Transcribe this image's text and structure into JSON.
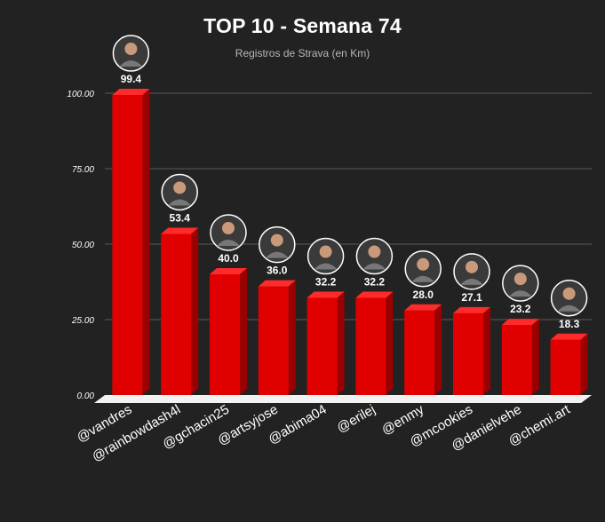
{
  "header": {
    "title": "TOP 10 - Semana 74",
    "subtitle": "Registros de Strava (en Km)"
  },
  "chart_data": {
    "type": "bar",
    "title": "TOP 10 - Semana 74",
    "subtitle": "Registros de Strava (en Km)",
    "xlabel": "",
    "ylabel": "",
    "ylim": [
      0,
      100
    ],
    "yticks": [
      0,
      25,
      50,
      75,
      100
    ],
    "ytick_labels": [
      "0.00",
      "25.00",
      "50.00",
      "75.00",
      "100.00"
    ],
    "grid": true,
    "legend": "none",
    "bar_style": "3d",
    "bar_color": "#e00000",
    "bar_side_color": "#9a0000",
    "bar_top_color": "#ff2a2a",
    "floor_color": "#f2f2f2",
    "categories": [
      "@vandres",
      "@rainbowdash4l",
      "@gchacin25",
      "@artsyjose",
      "@abima04",
      "@erilej",
      "@enmy",
      "@mcookies",
      "@danielvehe",
      "@chemi.art"
    ],
    "values": [
      99.4,
      53.4,
      40.0,
      36.0,
      32.2,
      32.2,
      28.0,
      27.1,
      23.2,
      18.3
    ],
    "data_labels": [
      "99.4",
      "53.4",
      "40.0",
      "36.0",
      "32.2",
      "32.2",
      "28.0",
      "27.1",
      "23.2",
      "18.3"
    ],
    "avatars": [
      "avatar-vandres",
      "avatar-rainbowdash4l",
      "avatar-gchacin25",
      "avatar-artsyjose",
      "avatar-abima04",
      "avatar-erilej",
      "avatar-enmy",
      "avatar-mcookies",
      "avatar-danielvehe",
      "avatar-chemi-art"
    ]
  }
}
